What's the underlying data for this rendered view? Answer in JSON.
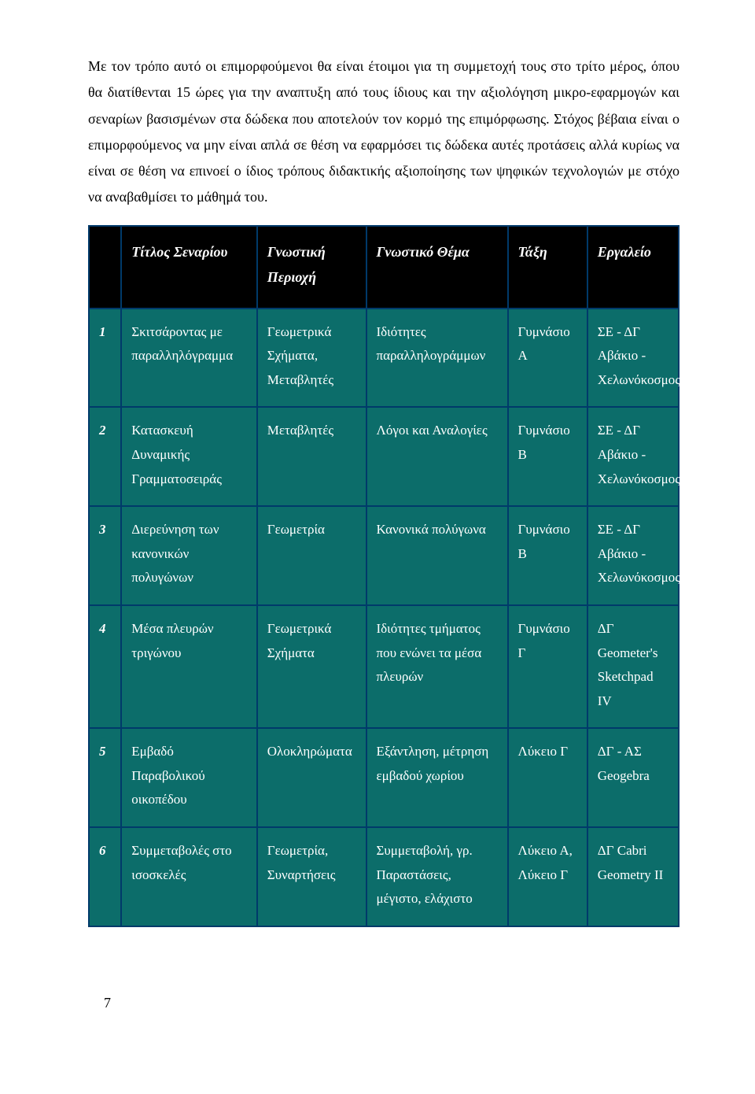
{
  "paragraph": "Με τον τρόπο αυτό οι επιμορφούμενοι θα είναι έτοιμοι για τη συμμετοχή τους στο τρίτο μέρος, όπου θα διατίθενται 15 ώρες για την αναπτυξη από τους ίδιους και την αξιολόγηση μικρο-εφαρμογών και σεναρίων βασισμένων στα δώδεκα που αποτελούν τον κορμό της επιμόρφωσης. Στόχος βέβαια είναι ο επιμορφούμενος να μην είναι απλά σε θέση να εφαρμόσει τις δώδεκα αυτές προτάσεις αλλά κυρίως να είναι σε θέση να επινοεί ο ίδιος τρόπους διδακτικής αξιοποίησης των ψηφικών τεχνολογιών με στόχο να αναβαθμίσει το μάθημά του.",
  "table": {
    "headers": [
      "",
      "Τίτλος Σεναρίου",
      "Γνωστική Περιοχή",
      "Γνωστικό Θέμα",
      "Τάξη",
      "Εργαλείο"
    ],
    "rows": [
      {
        "n": "1",
        "title": "Σκιτσάροντας με παραλληλόγραμμα",
        "area": "Γεωμετρικά Σχήματα, Μεταβλητές",
        "topic": "Ιδιότητες παραλληλογράμμων",
        "grade": "Γυμνάσιο Α",
        "tool": "ΣΕ - ΔΓ Αβάκιο - Χελωνόκοσμος"
      },
      {
        "n": "2",
        "title": "Κατασκευή Δυναμικής Γραμματοσειράς",
        "area": "Μεταβλητές",
        "topic": "Λόγοι και Αναλογίες",
        "grade": "Γυμνάσιο Β",
        "tool": "ΣΕ - ΔΓ Αβάκιο - Χελωνόκοσμος"
      },
      {
        "n": "3",
        "title": "Διερεύνηση των κανονικών πολυγώνων",
        "area": "Γεωμετρία",
        "topic": "Κανονικά πολύγωνα",
        "grade": "Γυμνάσιο Β",
        "tool": "ΣΕ - ΔΓ Αβάκιο - Χελωνόκοσμος"
      },
      {
        "n": "4",
        "title": "Μέσα πλευρών τριγώνου",
        "area": "Γεωμετρικά Σχήματα",
        "topic": "Ιδιότητες τμήματος που ενώνει τα μέσα πλευρών",
        "grade": "Γυμνάσιο Γ",
        "tool": "ΔΓ Geometer's Sketchpad IV"
      },
      {
        "n": "5",
        "title": "Εμβαδό Παραβολικού οικοπέδου",
        "area": "Ολοκληρώματα",
        "topic": "Εξάντληση, μέτρηση εμβαδού χωρίου",
        "grade": "Λύκειο Γ",
        "tool": "ΔΓ - ΑΣ Geogebra"
      },
      {
        "n": "6",
        "title": "Συμμεταβολές στο ισοσκελές",
        "area": "Γεωμετρία, Συναρτήσεις",
        "topic": "Συμμεταβολή, γρ. Παραστάσεις, μέγιστο, ελάχιστο",
        "grade": "Λύκειο Α, Λύκειο Γ",
        "tool": "ΔΓ Cabri Geometry II"
      }
    ]
  },
  "page_number": "7",
  "colors": {
    "table_border": "#003a6a",
    "header_bg": "#000000",
    "header_fg": "#ffffff",
    "cell_bg": "#0c6d6a",
    "cell_fg": "#ffffff",
    "page_bg": "#ffffff",
    "text_fg": "#000000"
  }
}
